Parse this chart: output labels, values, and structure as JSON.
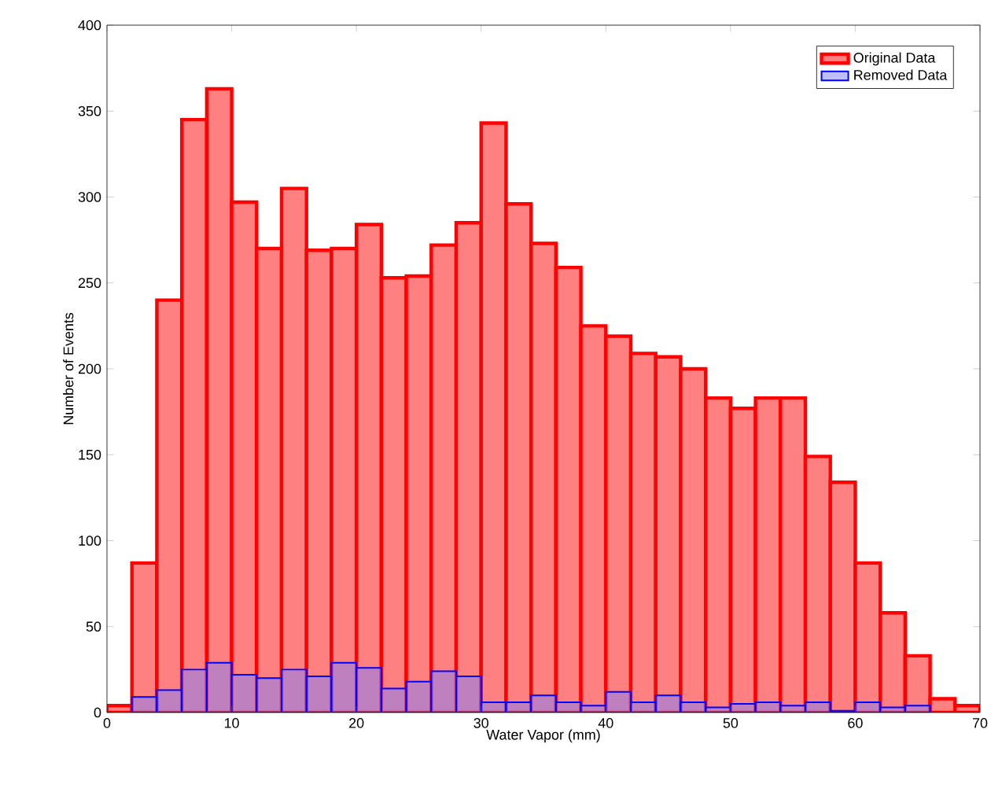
{
  "chart_data": {
    "type": "histogram",
    "xlabel": "Water Vapor (mm)",
    "ylabel": "Number of Events",
    "bins": [
      0,
      2,
      4,
      6,
      8,
      10,
      12,
      14,
      16,
      18,
      20,
      22,
      24,
      26,
      28,
      30,
      32,
      34,
      36,
      38,
      40,
      42,
      44,
      46,
      48,
      50,
      52,
      54,
      56,
      58,
      60,
      62,
      64,
      66,
      68,
      70
    ],
    "series": [
      {
        "name": "Original Data",
        "color": "#ff8080",
        "values": [
          4,
          87,
          240,
          345,
          363,
          297,
          270,
          305,
          269,
          270,
          284,
          253,
          254,
          272,
          285,
          343,
          296,
          273,
          259,
          225,
          219,
          209,
          207,
          200,
          183,
          177,
          183,
          183,
          149,
          134,
          87,
          58,
          33,
          8,
          4
        ]
      },
      {
        "name": "Removed Data",
        "color": "#8080ff",
        "values": [
          0,
          9,
          13,
          25,
          29,
          22,
          20,
          25,
          21,
          29,
          26,
          14,
          18,
          24,
          21,
          6,
          6,
          10,
          6,
          4,
          12,
          6,
          10,
          6,
          3,
          5,
          6,
          4,
          6,
          1,
          6,
          3,
          4,
          0,
          0
        ]
      }
    ],
    "xlim": [
      0,
      70
    ],
    "xticks": [
      0,
      10,
      20,
      30,
      40,
      50,
      60,
      70
    ],
    "ylim": [
      0,
      400
    ],
    "yticks": [
      0,
      50,
      100,
      150,
      200,
      250,
      300,
      350,
      400
    ],
    "legend": "top right"
  }
}
